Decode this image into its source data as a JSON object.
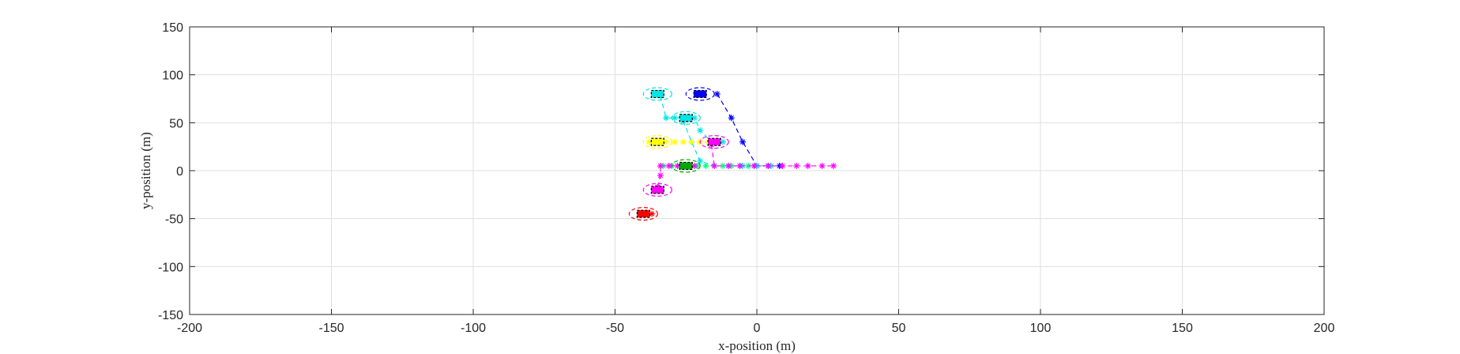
{
  "chart_data": {
    "type": "scatter",
    "xlabel": "x-position (m)",
    "ylabel": "y-position (m)",
    "xlim": [
      -200,
      200
    ],
    "ylim": [
      -150,
      150
    ],
    "xticks": [
      -200,
      -150,
      -100,
      -50,
      0,
      50,
      100,
      150,
      200
    ],
    "yticks": [
      -150,
      -100,
      -50,
      0,
      50,
      100,
      150
    ],
    "grid": true,
    "vehicles": [
      {
        "color": "#00e5e5",
        "x": -35,
        "y": 80
      },
      {
        "color": "#0000ff",
        "x": -20,
        "y": 80
      },
      {
        "color": "#00e5e5",
        "x": -25,
        "y": 55
      },
      {
        "color": "#ffff00",
        "x": -35,
        "y": 30
      },
      {
        "color": "#ff00ff",
        "x": -15,
        "y": 30
      },
      {
        "color": "#00aa00",
        "x": -25,
        "y": 5
      },
      {
        "color": "#ff00ff",
        "x": -35,
        "y": -20
      },
      {
        "color": "#ff0000",
        "x": -40,
        "y": -45
      }
    ],
    "trajectories": [
      {
        "color": "#0000ff",
        "points": [
          [
            -14,
            80
          ],
          [
            -9,
            55
          ],
          [
            -5,
            30
          ],
          [
            0,
            5
          ],
          [
            4,
            5
          ],
          [
            8,
            5
          ]
        ]
      },
      {
        "color": "#00e5e5",
        "points": [
          [
            -34,
            78
          ],
          [
            -32,
            55
          ],
          [
            -29,
            55
          ],
          [
            -22,
            55
          ],
          [
            -20,
            42
          ],
          [
            -16,
            30
          ],
          [
            -12,
            30
          ]
        ]
      },
      {
        "color": "#00e5e5",
        "points": [
          [
            -26,
            52
          ],
          [
            -23,
            30
          ],
          [
            -20,
            10
          ],
          [
            -15,
            5
          ],
          [
            -10,
            5
          ],
          [
            -5,
            5
          ],
          [
            0,
            5
          ],
          [
            5,
            5
          ]
        ]
      },
      {
        "color": "#ffff00",
        "points": [
          [
            -38,
            30
          ],
          [
            -35,
            30
          ],
          [
            -32,
            30
          ],
          [
            -29,
            30
          ],
          [
            -26,
            30
          ],
          [
            -23,
            30
          ],
          [
            -20,
            30
          ],
          [
            -17,
            30
          ]
        ]
      },
      {
        "color": "#00ff80",
        "points": [
          [
            -33,
            5
          ],
          [
            -30,
            5
          ],
          [
            -27,
            5
          ],
          [
            -24,
            5
          ],
          [
            -21,
            5
          ],
          [
            -18,
            5
          ],
          [
            -15,
            5
          ],
          [
            -12,
            5
          ],
          [
            -9,
            5
          ],
          [
            -6,
            5
          ],
          [
            -3,
            5
          ]
        ]
      },
      {
        "color": "#ff00ff",
        "points": [
          [
            -16,
            27
          ],
          [
            -15,
            5
          ],
          [
            -10,
            5
          ],
          [
            -6,
            5
          ],
          [
            -1,
            5
          ],
          [
            4,
            5
          ],
          [
            9,
            5
          ],
          [
            14,
            5
          ],
          [
            18,
            5
          ],
          [
            23,
            5
          ],
          [
            27,
            5
          ]
        ]
      },
      {
        "color": "#ff00ff",
        "points": [
          [
            -35,
            -17
          ],
          [
            -34,
            -5
          ],
          [
            -34,
            5
          ],
          [
            -31,
            5
          ],
          [
            -28,
            5
          ],
          [
            -25,
            5
          ],
          [
            -22,
            5
          ]
        ]
      },
      {
        "color": "#ff0000",
        "points": [
          [
            -39,
            -45
          ],
          [
            -37,
            -45
          ]
        ]
      }
    ]
  }
}
